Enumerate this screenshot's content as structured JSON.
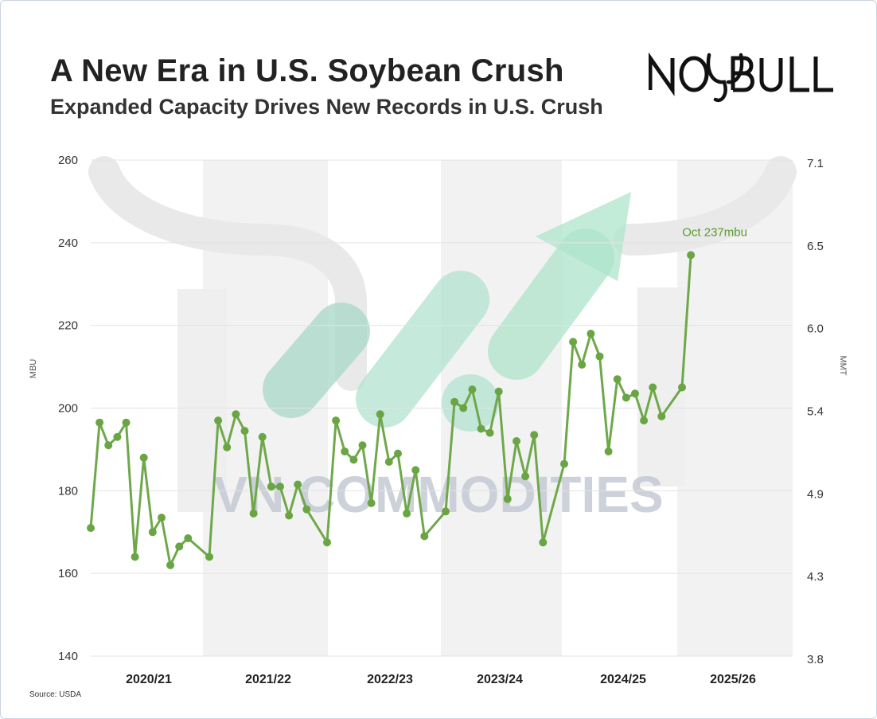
{
  "header": {
    "title": "A New Era in U.S. Soybean Crush",
    "subtitle": "Expanded Capacity Drives New Records in U.S. Crush",
    "logo_text": "NO BULL"
  },
  "watermark_text": "VN COMMODITIES",
  "footer": {
    "source": "Source: USDA"
  },
  "colors": {
    "line": "#6fa84a",
    "marker": "#6aa544",
    "annotation": "#5a9a30",
    "grid": "#e3e3e3",
    "band": "#f2f2f2"
  },
  "chart_data": {
    "type": "line",
    "title": "A New Era in U.S. Soybean Crush",
    "ylabel": "MBU",
    "y2label": "MMT",
    "ylim": [
      140,
      260
    ],
    "yticks": [
      140,
      160,
      180,
      200,
      220,
      240,
      260
    ],
    "y2ticks": [
      "3.8",
      "4.3",
      "4.9",
      "5.4",
      "6.0",
      "6.5",
      "7.1"
    ],
    "grid": true,
    "categories": [
      "2020/21",
      "2021/22",
      "2022/23",
      "2023/24",
      "2024/25",
      "2025/26"
    ],
    "segments": [
      [
        171,
        196.5,
        191,
        193,
        196.5,
        164,
        188,
        170,
        173.5,
        162,
        166.5,
        168.5
      ],
      [
        164,
        197,
        190.5,
        198.5,
        194.5,
        174.5,
        193,
        181,
        181,
        174,
        181.5,
        175.5
      ],
      [
        167.5,
        197,
        189.5,
        187.5,
        191,
        177,
        198.5,
        187,
        189,
        174.5,
        185,
        169
      ],
      [
        175,
        201.5,
        200,
        204.5,
        195,
        194,
        204,
        178,
        192,
        183.5,
        193.5,
        167.5
      ],
      [
        186.5,
        216,
        210.5,
        218,
        212.5,
        189.5,
        207,
        202.5,
        203.5,
        197,
        205,
        198
      ],
      [
        205,
        237
      ]
    ],
    "annotations": [
      {
        "text": "Oct 237mbu",
        "value": 237
      }
    ]
  }
}
